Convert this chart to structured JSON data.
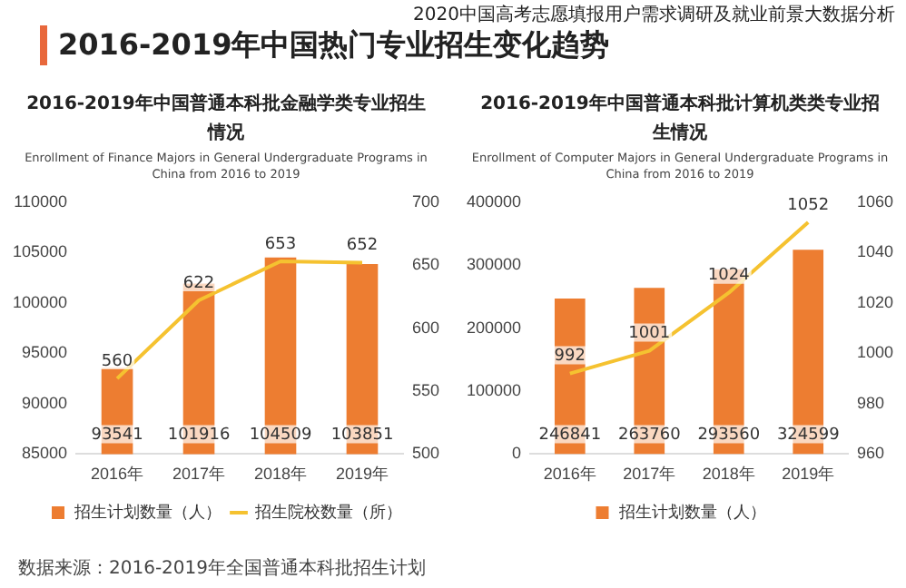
{
  "chart_data": [
    {
      "type": "bar",
      "title": "2016-2019年中国普通本科批金融学类专业招生情况",
      "subtitle": "Enrollment of Finance Majors in General Undergraduate Programs in China from 2016 to 2019",
      "categories": [
        "2016年",
        "2017年",
        "2018年",
        "2019年"
      ],
      "series": [
        {
          "name": "招生计划数量（人）",
          "color": "#ed7d31",
          "values": [
            93541,
            101916,
            104509,
            103851
          ]
        },
        {
          "name": "招生院校数量（所）",
          "type": "line",
          "axis": "y2",
          "color": "#f5c230",
          "values": [
            560,
            622,
            653,
            652
          ]
        }
      ],
      "ylim": [
        85000,
        110000
      ],
      "yticks": [
        85000,
        90000,
        95000,
        100000,
        105000,
        110000
      ],
      "y2lim": [
        500,
        700
      ],
      "y2ticks": [
        500,
        550,
        600,
        650,
        700
      ],
      "data_labels": true,
      "legend": "bottom",
      "grid": false,
      "marker": "none",
      "annotations": [
        "2020中国高考志愿填报用户需求调研及就业前景大数据分析",
        "2016-2019年中国热门专业招生变化趋势",
        "数据来源：2016-2019年全国普通本科批招生计划"
      ]
    },
    {
      "type": "bar",
      "title": "2016-2019年中国普通本科批计算机类类专业招生情况",
      "subtitle": "Enrollment of Computer Majors in General Undergraduate Programs in China from 2016 to 2019",
      "categories": [
        "2016年",
        "2017年",
        "2018年",
        "2019年"
      ],
      "series": [
        {
          "name": "招生计划数量（人）",
          "color": "#ed7d31",
          "values": [
            246841,
            263760,
            293560,
            324599
          ]
        },
        {
          "type": "line",
          "axis": "y2",
          "color": "#f5c230",
          "values": [
            992,
            1001,
            1024,
            1052
          ]
        }
      ],
      "ylim": [
        0,
        400000
      ],
      "yticks": [
        0,
        100000,
        200000,
        300000,
        400000
      ],
      "y2lim": [
        960,
        1060
      ],
      "y2ticks": [
        960,
        980,
        1000,
        1020,
        1040,
        1060
      ],
      "data_labels": true,
      "legend": "bottom",
      "grid": false,
      "marker": "none"
    }
  ]
}
